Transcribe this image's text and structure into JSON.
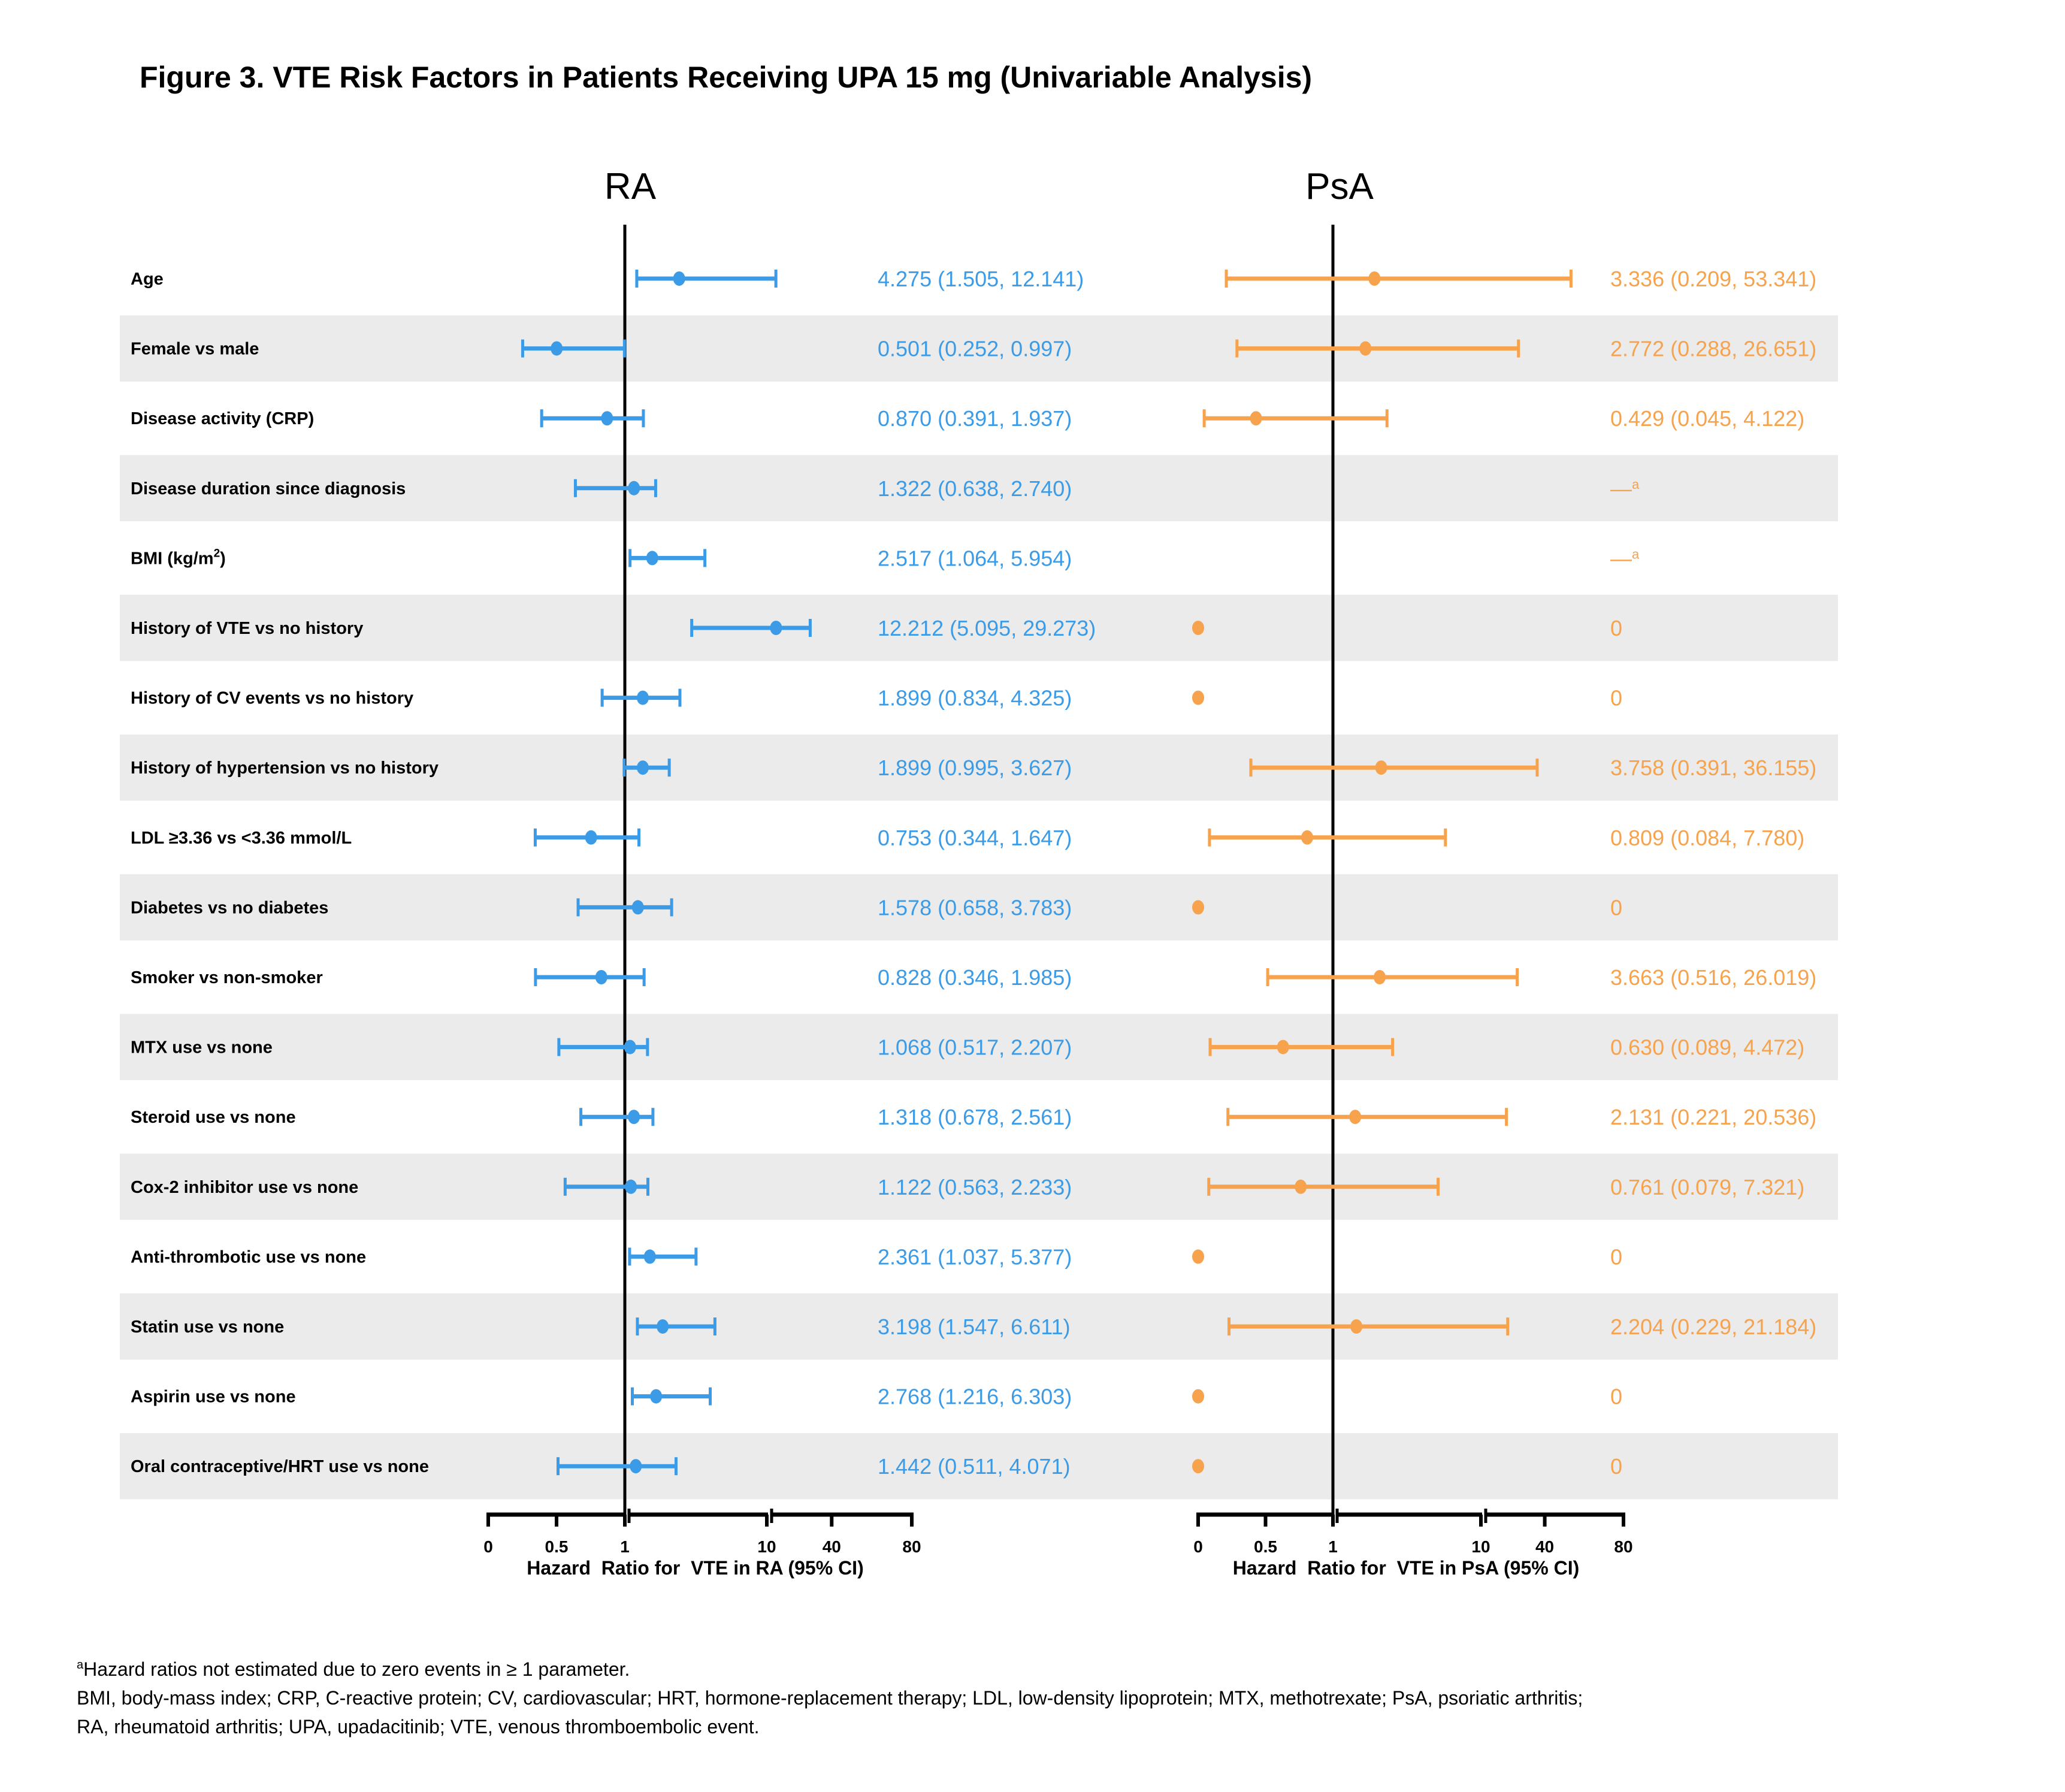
{
  "page": {
    "title": "Figure 3. VTE Risk Factors in Patients Receiving UPA 15 mg (Univariable Analysis)",
    "footnotes": {
      "a_marker": "a",
      "a_text": "Hazard ratios not estimated due to zero events in ≥ 1 parameter.",
      "abbrev_line1": "BMI, body-mass index; CRP, C-reactive protein; CV, cardiovascular; HRT, hormone-replacement therapy; LDL, low-density lipoprotein; MTX, methotrexate; PsA, psoriatic arthritis;",
      "abbrev_line2": "RA, rheumatoid arthritis; UPA, upadacitinib; VTE, venous thromboembolic event."
    },
    "colors": {
      "ra": "#3c9be6",
      "psa": "#f7a24d",
      "band": "#ebebeb",
      "axis": "#000000"
    }
  },
  "chart_data": {
    "type": "forest",
    "title": "Figure 3. VTE Risk Factors in Patients Receiving UPA 15 mg (Univariable Analysis)",
    "panels": [
      {
        "key": "ra",
        "heading": "RA",
        "xlabel": "Hazard  Ratio for  VTE in RA (95% CI)",
        "ticks": [
          0,
          0.5,
          1,
          10,
          40,
          80
        ],
        "tick_labels": [
          "0",
          "0.5",
          "1",
          "10",
          "40",
          "80"
        ],
        "axis_breaks": [
          1,
          10
        ],
        "reference_line": 1,
        "xlim": [
          0,
          80
        ]
      },
      {
        "key": "psa",
        "heading": "PsA",
        "xlabel": "Hazard  Ratio for  VTE in PsA (95% CI)",
        "ticks": [
          0,
          0.5,
          1,
          10,
          40,
          80
        ],
        "tick_labels": [
          "0",
          "0.5",
          "1",
          "10",
          "40",
          "80"
        ],
        "axis_breaks": [
          1,
          10
        ],
        "reference_line": 1,
        "xlim": [
          0,
          80
        ]
      }
    ],
    "rows": [
      {
        "label": "Age",
        "label_sup": "",
        "ra": {
          "hr": 4.275,
          "lo": 1.505,
          "hi": 12.141,
          "text": "4.275 (1.505, 12.141)"
        },
        "psa": {
          "hr": 3.336,
          "lo": 0.209,
          "hi": 53.341,
          "text": "3.336 (0.209, 53.341)"
        }
      },
      {
        "label": "Female vs male",
        "label_sup": "",
        "ra": {
          "hr": 0.501,
          "lo": 0.252,
          "hi": 0.997,
          "text": "0.501 (0.252, 0.997)"
        },
        "psa": {
          "hr": 2.772,
          "lo": 0.288,
          "hi": 26.651,
          "text": "2.772 (0.288, 26.651)"
        }
      },
      {
        "label": "Disease activity (CRP)",
        "label_sup": "",
        "ra": {
          "hr": 0.87,
          "lo": 0.391,
          "hi": 1.937,
          "text": "0.870 (0.391, 1.937)"
        },
        "psa": {
          "hr": 0.429,
          "lo": 0.045,
          "hi": 4.122,
          "text": "0.429 (0.045, 4.122)"
        }
      },
      {
        "label": "Disease duration since diagnosis",
        "label_sup": "",
        "ra": {
          "hr": 1.322,
          "lo": 0.638,
          "hi": 2.74,
          "text": "1.322 (0.638, 2.740)"
        },
        "psa": {
          "hr": null,
          "lo": null,
          "hi": null,
          "text": "—",
          "text_sup": "a"
        }
      },
      {
        "label": "BMI (kg/m",
        "label_sup": "2",
        "label_after": ")",
        "ra": {
          "hr": 2.517,
          "lo": 1.064,
          "hi": 5.954,
          "text": "2.517 (1.064, 5.954)"
        },
        "psa": {
          "hr": null,
          "lo": null,
          "hi": null,
          "text": "—",
          "text_sup": "a"
        }
      },
      {
        "label": "History of VTE vs no history",
        "label_sup": "",
        "ra": {
          "hr": 12.212,
          "lo": 5.095,
          "hi": 29.273,
          "text": "12.212 (5.095, 29.273)"
        },
        "psa": {
          "hr": 0,
          "lo": null,
          "hi": null,
          "text": "0"
        }
      },
      {
        "label": "History of CV events vs no history",
        "label_sup": "",
        "ra": {
          "hr": 1.899,
          "lo": 0.834,
          "hi": 4.325,
          "text": "1.899 (0.834, 4.325)"
        },
        "psa": {
          "hr": 0,
          "lo": null,
          "hi": null,
          "text": "0"
        }
      },
      {
        "label": "History of hypertension vs no history",
        "label_sup": "",
        "ra": {
          "hr": 1.899,
          "lo": 0.995,
          "hi": 3.627,
          "text": "1.899 (0.995, 3.627)"
        },
        "psa": {
          "hr": 3.758,
          "lo": 0.391,
          "hi": 36.155,
          "text": "3.758 (0.391, 36.155)"
        }
      },
      {
        "label": "LDL ≥3.36 vs <3.36 mmol/L",
        "label_sup": "",
        "ra": {
          "hr": 0.753,
          "lo": 0.344,
          "hi": 1.647,
          "text": "0.753 (0.344, 1.647)"
        },
        "psa": {
          "hr": 0.809,
          "lo": 0.084,
          "hi": 7.78,
          "text": "0.809 (0.084, 7.780)"
        }
      },
      {
        "label": "Diabetes vs no diabetes",
        "label_sup": "",
        "ra": {
          "hr": 1.578,
          "lo": 0.658,
          "hi": 3.783,
          "text": "1.578 (0.658, 3.783)"
        },
        "psa": {
          "hr": 0,
          "lo": null,
          "hi": null,
          "text": "0"
        }
      },
      {
        "label": "Smoker vs non-smoker",
        "label_sup": "",
        "ra": {
          "hr": 0.828,
          "lo": 0.346,
          "hi": 1.985,
          "text": "0.828 (0.346, 1.985)"
        },
        "psa": {
          "hr": 3.663,
          "lo": 0.516,
          "hi": 26.019,
          "text": "3.663 (0.516, 26.019)"
        }
      },
      {
        "label": "MTX use vs none",
        "label_sup": "",
        "ra": {
          "hr": 1.068,
          "lo": 0.517,
          "hi": 2.207,
          "text": "1.068 (0.517, 2.207)"
        },
        "psa": {
          "hr": 0.63,
          "lo": 0.089,
          "hi": 4.472,
          "text": "0.630 (0.089, 4.472)"
        }
      },
      {
        "label": "Steroid use vs none",
        "label_sup": "",
        "ra": {
          "hr": 1.318,
          "lo": 0.678,
          "hi": 2.561,
          "text": "1.318 (0.678, 2.561)"
        },
        "psa": {
          "hr": 2.131,
          "lo": 0.221,
          "hi": 20.536,
          "text": "2.131 (0.221, 20.536)"
        }
      },
      {
        "label": "Cox-2 inhibitor use vs none",
        "label_sup": "",
        "ra": {
          "hr": 1.122,
          "lo": 0.563,
          "hi": 2.233,
          "text": "1.122 (0.563, 2.233)"
        },
        "psa": {
          "hr": 0.761,
          "lo": 0.079,
          "hi": 7.321,
          "text": "0.761 (0.079, 7.321)"
        }
      },
      {
        "label": "Anti-thrombotic use vs none",
        "label_sup": "",
        "ra": {
          "hr": 2.361,
          "lo": 1.037,
          "hi": 5.377,
          "text": "2.361 (1.037, 5.377)"
        },
        "psa": {
          "hr": 0,
          "lo": null,
          "hi": null,
          "text": "0"
        }
      },
      {
        "label": "Statin use vs none",
        "label_sup": "",
        "ra": {
          "hr": 3.198,
          "lo": 1.547,
          "hi": 6.611,
          "text": "3.198 (1.547, 6.611)"
        },
        "psa": {
          "hr": 2.204,
          "lo": 0.229,
          "hi": 21.184,
          "text": "2.204 (0.229, 21.184)"
        }
      },
      {
        "label": "Aspirin use vs none",
        "label_sup": "",
        "ra": {
          "hr": 2.768,
          "lo": 1.216,
          "hi": 6.303,
          "text": "2.768 (1.216, 6.303)"
        },
        "psa": {
          "hr": 0,
          "lo": null,
          "hi": null,
          "text": "0"
        }
      },
      {
        "label": "Oral contraceptive/HRT use vs none",
        "label_sup": "",
        "ra": {
          "hr": 1.442,
          "lo": 0.511,
          "hi": 4.071,
          "text": "1.442 (0.511, 4.071)"
        },
        "psa": {
          "hr": 0,
          "lo": null,
          "hi": null,
          "text": "0"
        }
      }
    ]
  }
}
